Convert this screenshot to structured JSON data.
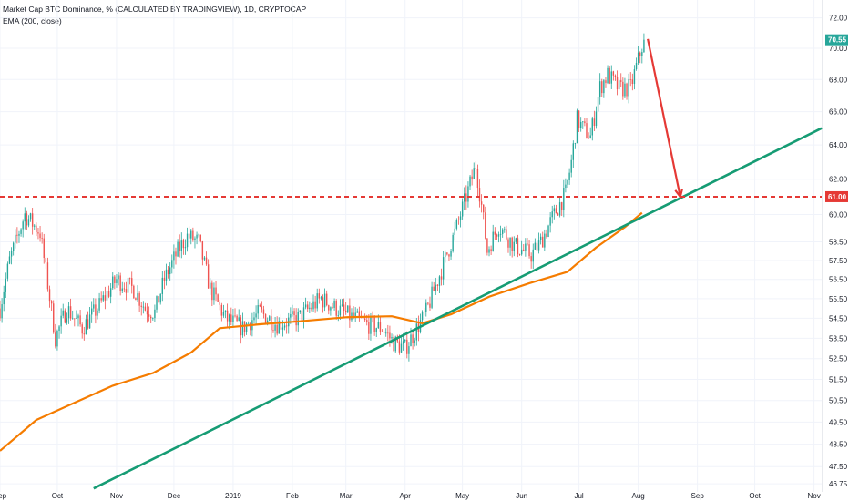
{
  "header": {
    "title": "Market Cap BTC Dominance, % (CALCULATED BY TRADINGVIEW), 1D, CRYPTOCAP",
    "indicator": "EMA (200, close)"
  },
  "colors": {
    "up": "#26a69a",
    "down": "#ef5350",
    "ema": "#f57c00",
    "trendline": "#169c74",
    "resistance": "#e53935",
    "arrow": "#e53935",
    "grid": "#f0f3fa"
  },
  "chart_data": {
    "type": "candlestick",
    "title": "Market Cap BTC Dominance, % (CALCULATED BY TRADINGVIEW), 1D, CRYPTOCAP",
    "y_scale": "log",
    "ylim": [
      46.4,
      73.2
    ],
    "xlim": [
      "2018-09-01",
      "2019-11-05"
    ],
    "y_ticks": [
      "72.00",
      "70.00",
      "68.00",
      "66.00",
      "64.00",
      "62.00",
      "60.00",
      "58.50",
      "57.50",
      "56.50",
      "55.50",
      "54.50",
      "53.50",
      "52.50",
      "51.50",
      "50.50",
      "49.50",
      "48.50",
      "47.50",
      "46.75"
    ],
    "x_ticks": [
      {
        "date": "2018-09-01",
        "label": "Sep"
      },
      {
        "date": "2018-10-01",
        "label": "Oct"
      },
      {
        "date": "2018-11-01",
        "label": "Nov"
      },
      {
        "date": "2018-12-01",
        "label": "Dec"
      },
      {
        "date": "2019-01-01",
        "label": "2019"
      },
      {
        "date": "2019-02-01",
        "label": "Feb"
      },
      {
        "date": "2019-03-01",
        "label": "Mar"
      },
      {
        "date": "2019-04-01",
        "label": "Apr"
      },
      {
        "date": "2019-05-01",
        "label": "May"
      },
      {
        "date": "2019-06-01",
        "label": "Jun"
      },
      {
        "date": "2019-07-01",
        "label": "Jul"
      },
      {
        "date": "2019-08-01",
        "label": "Aug"
      },
      {
        "date": "2019-09-01",
        "label": "Sep"
      },
      {
        "date": "2019-10-01",
        "label": "Oct"
      },
      {
        "date": "2019-11-01",
        "label": "Nov"
      }
    ],
    "series": [
      {
        "kind": "candles",
        "path_dates": [
          "2018-09-01",
          "2018-09-06",
          "2018-09-14",
          "2018-09-22",
          "2018-09-30",
          "2018-10-06",
          "2018-10-14",
          "2018-10-22",
          "2018-11-01",
          "2018-11-10",
          "2018-11-16",
          "2018-11-21",
          "2018-11-26",
          "2018-12-03",
          "2018-12-08",
          "2018-12-14",
          "2018-12-20",
          "2018-12-28",
          "2019-01-06",
          "2019-01-15",
          "2019-01-24",
          "2019-02-04",
          "2019-02-16",
          "2019-02-24",
          "2019-03-03",
          "2019-03-12",
          "2019-03-20",
          "2019-03-26",
          "2019-04-01",
          "2019-04-06",
          "2019-04-12",
          "2019-04-20",
          "2019-04-27",
          "2019-05-03",
          "2019-05-08",
          "2019-05-11",
          "2019-05-14",
          "2019-05-16",
          "2019-05-20",
          "2019-05-28",
          "2019-06-06",
          "2019-06-11",
          "2019-06-18",
          "2019-06-24",
          "2019-06-27",
          "2019-06-30",
          "2019-07-03",
          "2019-07-07",
          "2019-07-12",
          "2019-07-16",
          "2019-07-22",
          "2019-07-28",
          "2019-08-04"
        ],
        "path_closes": [
          55.0,
          57.5,
          60.0,
          59.0,
          53.5,
          55.0,
          54.0,
          55.0,
          56.5,
          56.0,
          55.0,
          54.8,
          56.5,
          58.0,
          58.8,
          58.5,
          56.0,
          54.5,
          54.0,
          54.8,
          54.2,
          54.5,
          55.5,
          55.0,
          54.6,
          54.2,
          54.0,
          53.3,
          53.0,
          53.8,
          54.8,
          57.0,
          59.0,
          61.0,
          62.8,
          60.5,
          58.0,
          58.5,
          59.4,
          58.3,
          57.8,
          58.5,
          60.0,
          61.2,
          63.0,
          65.5,
          65.0,
          64.5,
          67.5,
          68.3,
          67.4,
          67.5,
          70.55
        ]
      },
      {
        "kind": "ema",
        "name": "EMA (200, close)",
        "dates": [
          "2018-09-01",
          "2018-09-20",
          "2018-10-10",
          "2018-10-30",
          "2018-11-20",
          "2018-12-10",
          "2018-12-25",
          "2019-01-15",
          "2019-02-05",
          "2019-03-01",
          "2019-03-25",
          "2019-04-10",
          "2019-04-25",
          "2019-05-15",
          "2019-06-05",
          "2019-06-25",
          "2019-07-10",
          "2019-07-25",
          "2019-08-03"
        ],
        "values": [
          48.2,
          49.6,
          50.4,
          51.2,
          51.8,
          52.8,
          54.0,
          54.2,
          54.35,
          54.55,
          54.6,
          54.25,
          54.7,
          55.6,
          56.3,
          56.9,
          58.2,
          59.3,
          60.1
        ]
      },
      {
        "kind": "trendline",
        "dates": [
          "2018-10-20",
          "2019-11-05"
        ],
        "values": [
          46.55,
          65.0
        ]
      },
      {
        "kind": "horizontal_line",
        "value": 61.0,
        "label": "61.00"
      },
      {
        "kind": "arrow",
        "from": {
          "date": "2019-08-06",
          "value": 70.6
        },
        "to": {
          "date": "2019-08-23",
          "value": 61.0
        }
      }
    ],
    "last_price": {
      "value": 70.55,
      "label": "70.55"
    }
  }
}
